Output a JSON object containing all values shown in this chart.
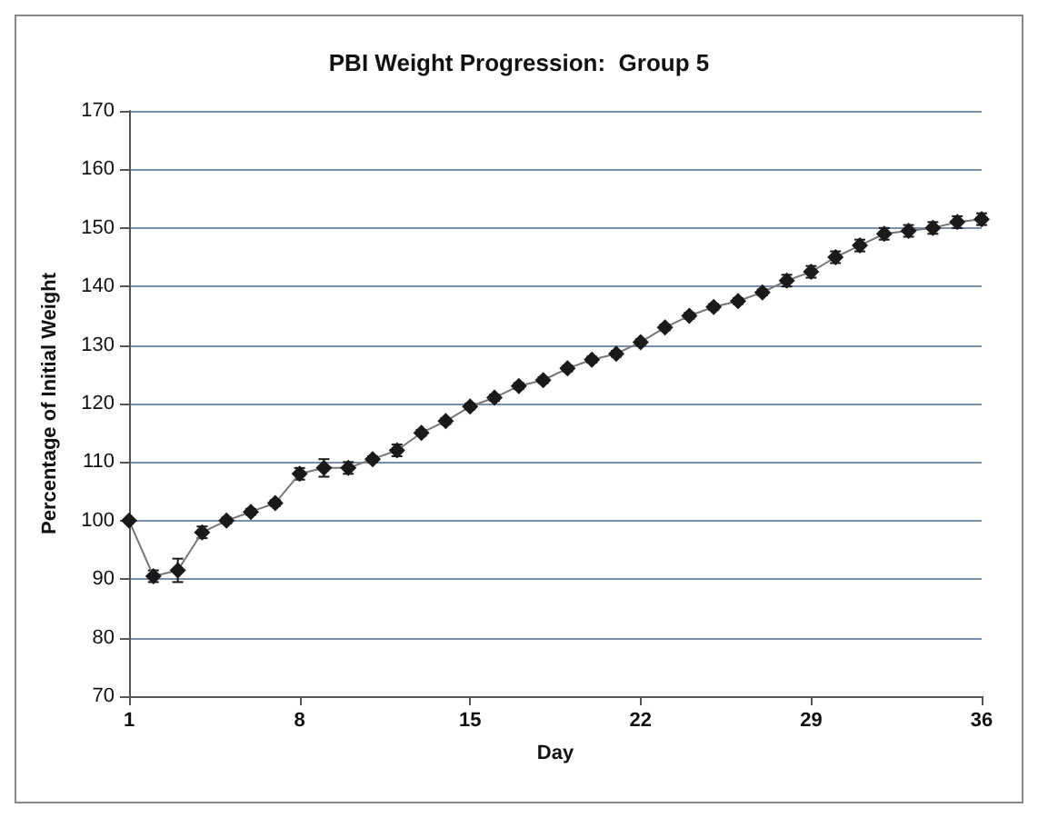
{
  "chart_data": {
    "type": "line",
    "title": "PBI Weight Progression:  Group 5",
    "xlabel": "Day",
    "ylabel": "Percentage of Initial Weight",
    "x": [
      1,
      2,
      3,
      4,
      5,
      6,
      7,
      8,
      9,
      10,
      11,
      12,
      13,
      14,
      15,
      16,
      17,
      18,
      19,
      20,
      21,
      22,
      23,
      24,
      25,
      26,
      27,
      28,
      29,
      30,
      31,
      32,
      33,
      34,
      35,
      36
    ],
    "series": [
      {
        "color": "#1a1a1a",
        "values": [
          100,
          90.5,
          91.5,
          98,
          100,
          101.5,
          103,
          108,
          109,
          109,
          110.5,
          112,
          115,
          117,
          119.5,
          121,
          123,
          124,
          126,
          127.5,
          128.5,
          130.5,
          133,
          135,
          136.5,
          137.5,
          139,
          141,
          142.5,
          145,
          147,
          149,
          149.5,
          150,
          151,
          151.5
        ],
        "errors": [
          null,
          1,
          2,
          1,
          0.5,
          0.5,
          0.5,
          1,
          1.5,
          1,
          0.5,
          1,
          0.5,
          0.5,
          0.5,
          0.5,
          0.5,
          0.5,
          0.5,
          0.5,
          0.5,
          0.5,
          0.5,
          0.5,
          0.5,
          0.5,
          0.5,
          1,
          1,
          1,
          1,
          1,
          1,
          1,
          1,
          1
        ]
      }
    ],
    "xlim": [
      1,
      36
    ],
    "xticks": [
      1,
      8,
      15,
      22,
      29,
      36
    ],
    "ylim": [
      70,
      170
    ],
    "yticks": [
      70,
      80,
      90,
      100,
      110,
      120,
      130,
      140,
      150,
      160,
      170
    ],
    "grid": "y",
    "marker": "diamond",
    "line_style": "solid"
  }
}
